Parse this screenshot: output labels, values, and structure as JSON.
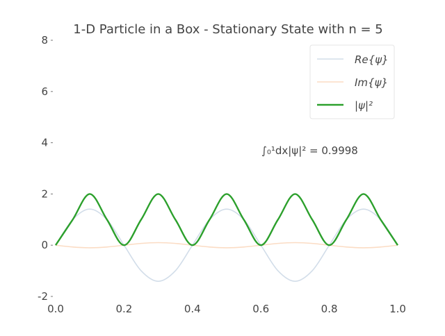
{
  "chart_data": {
    "type": "line",
    "title": "1-D Particle in a Box - Stationary State with n = 5",
    "xlabel": "",
    "ylabel": "",
    "xlim": [
      0.0,
      1.0
    ],
    "ylim": [
      -2,
      8
    ],
    "x_ticks": [
      "0.0",
      "0.2",
      "0.4",
      "0.6",
      "0.8",
      "1.0"
    ],
    "y_ticks": [
      "-2",
      "0",
      "2",
      "4",
      "6",
      "8"
    ],
    "grid": false,
    "legend_position": "top-right",
    "annotation": "∫₀¹dx|ψ|² = 0.9998",
    "series": [
      {
        "name": "Re{ψ}",
        "color": "#d2dde9",
        "line_width": "thin",
        "x": [
          0.0,
          0.05,
          0.1,
          0.15,
          0.2,
          0.25,
          0.3,
          0.35,
          0.4,
          0.45,
          0.5,
          0.55,
          0.6,
          0.65,
          0.7,
          0.75,
          0.8,
          0.85,
          0.9,
          0.95,
          1.0
        ],
        "values": [
          0.0,
          1.0,
          1.41,
          1.0,
          0.0,
          -1.0,
          -1.41,
          -1.0,
          0.0,
          1.0,
          1.41,
          1.0,
          0.0,
          -1.0,
          -1.41,
          -1.0,
          0.0,
          1.0,
          1.41,
          1.0,
          0.0
        ]
      },
      {
        "name": "Im{ψ}",
        "color": "#fbdcc4",
        "line_width": "thin",
        "x": [
          0.0,
          0.05,
          0.1,
          0.15,
          0.2,
          0.25,
          0.3,
          0.35,
          0.4,
          0.45,
          0.5,
          0.55,
          0.6,
          0.65,
          0.7,
          0.75,
          0.8,
          0.85,
          0.9,
          0.95,
          1.0
        ],
        "values": [
          0.0,
          -0.07,
          -0.1,
          -0.07,
          0.0,
          0.07,
          0.1,
          0.07,
          0.0,
          -0.07,
          -0.1,
          -0.07,
          0.0,
          0.07,
          0.1,
          0.07,
          0.0,
          -0.07,
          -0.1,
          -0.07,
          0.0
        ]
      },
      {
        "name": "|ψ|²",
        "color": "#2ca02c",
        "line_width": "thick",
        "x": [
          0.0,
          0.05,
          0.1,
          0.15,
          0.2,
          0.25,
          0.3,
          0.35,
          0.4,
          0.45,
          0.5,
          0.55,
          0.6,
          0.65,
          0.7,
          0.75,
          0.8,
          0.85,
          0.9,
          0.95,
          1.0
        ],
        "values": [
          0.0,
          1.0,
          2.0,
          1.0,
          0.0,
          1.0,
          2.0,
          1.0,
          0.0,
          1.0,
          2.0,
          1.0,
          0.0,
          1.0,
          2.0,
          1.0,
          0.0,
          1.0,
          2.0,
          1.0,
          0.0
        ]
      }
    ]
  }
}
